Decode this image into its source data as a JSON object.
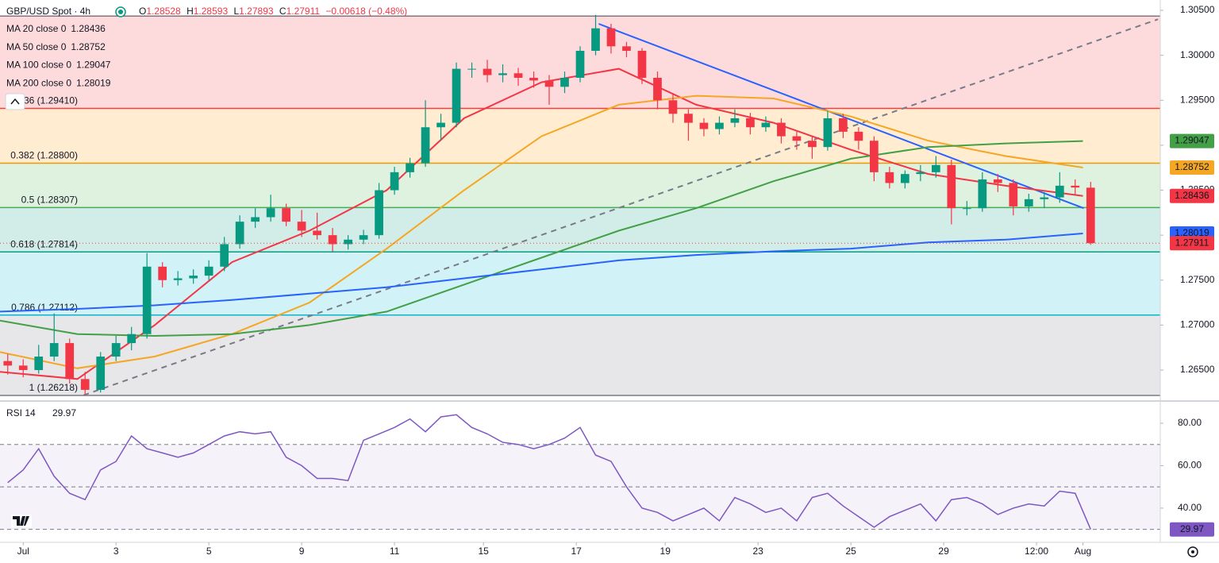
{
  "chart_data": [
    {
      "type": "candlestick",
      "title": "GBP/USD Spot · 4h",
      "ohlc_labels": [
        "O",
        "H",
        "L",
        "C"
      ],
      "change": "−0.00618 (−0.48%)",
      "up_color": "#089981",
      "down_color": "#f23645",
      "x": [
        1,
        3,
        5,
        7,
        9,
        11,
        13,
        15,
        17,
        19,
        21,
        23,
        25,
        27,
        29,
        31,
        33,
        35,
        37,
        39,
        41,
        43,
        45,
        47,
        49,
        51,
        53,
        55,
        57,
        59,
        61,
        63,
        65,
        67,
        69,
        71,
        73,
        75,
        77,
        79,
        81,
        83,
        85,
        87,
        89,
        91,
        93,
        95,
        97,
        99,
        101,
        103,
        105,
        107,
        109,
        111,
        113,
        115,
        117,
        119,
        121,
        123,
        125,
        127,
        129,
        131,
        133,
        135,
        137,
        139,
        141
      ],
      "candles": [
        [
          1.266,
          1.2668,
          1.2645,
          1.2655
        ],
        [
          1.2655,
          1.2662,
          1.2642,
          1.265
        ],
        [
          1.265,
          1.2678,
          1.2646,
          1.2665
        ],
        [
          1.2665,
          1.2713,
          1.266,
          1.268
        ],
        [
          1.268,
          1.2685,
          1.2635,
          1.264
        ],
        [
          1.264,
          1.2648,
          1.2622,
          1.2628
        ],
        [
          1.2628,
          1.267,
          1.2625,
          1.2665
        ],
        [
          1.2665,
          1.2688,
          1.266,
          1.268
        ],
        [
          1.268,
          1.2698,
          1.2672,
          1.269
        ],
        [
          1.269,
          1.278,
          1.2685,
          1.2765
        ],
        [
          1.2765,
          1.277,
          1.2742,
          1.275
        ],
        [
          1.275,
          1.276,
          1.2744,
          1.2752
        ],
        [
          1.2752,
          1.2762,
          1.2746,
          1.2755
        ],
        [
          1.2755,
          1.2772,
          1.275,
          1.2765
        ],
        [
          1.2765,
          1.2798,
          1.276,
          1.279
        ],
        [
          1.279,
          1.2822,
          1.2785,
          1.2815
        ],
        [
          1.2815,
          1.283,
          1.2808,
          1.282
        ],
        [
          1.282,
          1.2845,
          1.2815,
          1.283
        ],
        [
          1.283,
          1.2835,
          1.281,
          1.2815
        ],
        [
          1.2815,
          1.2828,
          1.2798,
          1.2805
        ],
        [
          1.2805,
          1.2825,
          1.2795,
          1.28
        ],
        [
          1.28,
          1.2808,
          1.2782,
          1.279
        ],
        [
          1.279,
          1.28,
          1.2784,
          1.2795
        ],
        [
          1.2795,
          1.2806,
          1.279,
          1.28
        ],
        [
          1.28,
          1.2858,
          1.2796,
          1.285
        ],
        [
          1.285,
          1.2876,
          1.2845,
          1.287
        ],
        [
          1.287,
          1.2886,
          1.2864,
          1.288
        ],
        [
          1.288,
          1.295,
          1.2876,
          1.292
        ],
        [
          1.292,
          1.2935,
          1.2905,
          1.2925
        ],
        [
          1.2925,
          1.2992,
          1.292,
          1.2985
        ],
        [
          1.2985,
          1.2992,
          1.2975,
          1.2985
        ],
        [
          1.2985,
          1.2995,
          1.297,
          1.2978
        ],
        [
          1.2978,
          1.299,
          1.297,
          1.298
        ],
        [
          1.298,
          1.2986,
          1.2966,
          1.2975
        ],
        [
          1.2975,
          1.2982,
          1.2964,
          1.2972
        ],
        [
          1.2972,
          1.2978,
          1.2945,
          1.2965
        ],
        [
          1.2965,
          1.2982,
          1.2958,
          1.2975
        ],
        [
          1.2975,
          1.301,
          1.297,
          1.3005
        ],
        [
          1.3005,
          1.3045,
          1.3,
          1.303
        ],
        [
          1.303,
          1.3035,
          1.3002,
          1.301
        ],
        [
          1.301,
          1.3015,
          1.2998,
          1.3005
        ],
        [
          1.3005,
          1.3008,
          1.2968,
          1.2975
        ],
        [
          1.2975,
          1.2982,
          1.294,
          1.295
        ],
        [
          1.295,
          1.2958,
          1.2925,
          1.2935
        ],
        [
          1.2935,
          1.294,
          1.2905,
          1.2925
        ],
        [
          1.2925,
          1.293,
          1.291,
          1.2918
        ],
        [
          1.2918,
          1.2932,
          1.2912,
          1.2925
        ],
        [
          1.2925,
          1.294,
          1.292,
          1.293
        ],
        [
          1.293,
          1.2936,
          1.2912,
          1.292
        ],
        [
          1.292,
          1.2932,
          1.2915,
          1.2925
        ],
        [
          1.2925,
          1.293,
          1.2902,
          1.291
        ],
        [
          1.291,
          1.2915,
          1.2895,
          1.2905
        ],
        [
          1.2905,
          1.291,
          1.2885,
          1.2898
        ],
        [
          1.2898,
          1.2938,
          1.2894,
          1.293
        ],
        [
          1.293,
          1.2935,
          1.2908,
          1.2915
        ],
        [
          1.2915,
          1.292,
          1.2895,
          1.2905
        ],
        [
          1.2905,
          1.291,
          1.286,
          1.287
        ],
        [
          1.287,
          1.2876,
          1.2852,
          1.2858
        ],
        [
          1.2858,
          1.2872,
          1.2852,
          1.2868
        ],
        [
          1.2868,
          1.2878,
          1.286,
          1.287
        ],
        [
          1.287,
          1.2888,
          1.2864,
          1.2878
        ],
        [
          1.2878,
          1.2884,
          1.2812,
          1.283
        ],
        [
          1.283,
          1.2838,
          1.2822,
          1.283
        ],
        [
          1.283,
          1.287,
          1.2826,
          1.2862
        ],
        [
          1.2862,
          1.2868,
          1.2848,
          1.2858
        ],
        [
          1.2858,
          1.2862,
          1.2822,
          1.2832
        ],
        [
          1.2832,
          1.2846,
          1.2826,
          1.284
        ],
        [
          1.284,
          1.2848,
          1.283,
          1.2842
        ],
        [
          1.2842,
          1.287,
          1.2836,
          1.2855
        ],
        [
          1.2855,
          1.2862,
          1.2845,
          1.2853
        ],
        [
          1.28528,
          1.28593,
          1.27893,
          1.27911
        ]
      ],
      "series": [
        {
          "name": "MA 20 close 0",
          "color": "#f23645",
          "x": [
            0,
            10,
            20,
            30,
            40,
            50,
            60,
            70,
            80,
            90,
            100,
            110,
            120,
            130,
            140
          ],
          "values": [
            1.2648,
            1.264,
            1.27,
            1.277,
            1.2805,
            1.285,
            1.293,
            1.297,
            1.2985,
            1.2945,
            1.2925,
            1.2895,
            1.2868,
            1.2855,
            1.28436
          ]
        },
        {
          "name": "MA 50 close 0",
          "color": "#f5a623",
          "x": [
            0,
            10,
            20,
            30,
            40,
            50,
            60,
            70,
            80,
            90,
            100,
            110,
            120,
            130,
            140
          ],
          "values": [
            1.267,
            1.2652,
            1.2665,
            1.269,
            1.2725,
            1.2785,
            1.285,
            1.291,
            1.2945,
            1.2955,
            1.2952,
            1.2932,
            1.2905,
            1.2888,
            1.28752
          ]
        },
        {
          "name": "MA 100 close 0",
          "color": "#43a047",
          "x": [
            0,
            10,
            20,
            30,
            40,
            50,
            60,
            70,
            80,
            90,
            100,
            110,
            120,
            130,
            140
          ],
          "values": [
            1.2705,
            1.269,
            1.2688,
            1.269,
            1.27,
            1.2715,
            1.2745,
            1.2775,
            1.2805,
            1.283,
            1.286,
            1.2885,
            1.2898,
            1.2902,
            1.29047
          ]
        },
        {
          "name": "MA 200 close 0",
          "color": "#2962ff",
          "x": [
            0,
            10,
            20,
            30,
            40,
            50,
            60,
            70,
            80,
            90,
            100,
            110,
            120,
            130,
            140
          ],
          "values": [
            1.2715,
            1.2718,
            1.2722,
            1.2728,
            1.2735,
            1.2742,
            1.2752,
            1.2762,
            1.2772,
            1.2778,
            1.2782,
            1.2785,
            1.2792,
            1.2795,
            1.28019
          ]
        }
      ],
      "fib": [
        {
          "label": null,
          "value": 1.30436,
          "color": "#787b86"
        },
        {
          "label": "36 (1.29410)",
          "value": 1.2941,
          "color": "#f23645"
        },
        {
          "label": "0.382 (1.28800)",
          "value": 1.288,
          "color": "#ff9800"
        },
        {
          "label": "0.5 (1.28307)",
          "value": 1.28307,
          "color": "#4caf50"
        },
        {
          "label": "0.618 (1.27814)",
          "value": 1.27814,
          "color": "#089981"
        },
        {
          "label": "0.786 (1.27112)",
          "value": 1.27112,
          "color": "#00bcd4"
        },
        {
          "label": "1 (1.26218)",
          "value": 1.26218,
          "color": "#787b86"
        }
      ],
      "trendlines": [
        {
          "x": [
            10.8,
            149.7
          ],
          "values": [
            1.2622,
            1.304
          ],
          "color": "#787b86",
          "dashed": true
        },
        {
          "x": [
            77.4,
            140.1
          ],
          "values": [
            1.3035,
            1.283
          ],
          "color": "#2962ff",
          "dashed": false
        }
      ],
      "xlim": [
        0,
        150
      ],
      "ylim": [
        1.262,
        1.30615
      ],
      "yticks": [
        {
          "value": 1.265,
          "label": "1.26500"
        },
        {
          "value": 1.27,
          "label": "1.27000"
        },
        {
          "value": 1.275,
          "label": "1.27500"
        },
        {
          "value": 1.28,
          "label": "1.28000"
        },
        {
          "value": 1.285,
          "label": "1.28500"
        },
        {
          "value": 1.29,
          "label": "1.29000"
        },
        {
          "value": 1.295,
          "label": "1.29500"
        },
        {
          "value": 1.3,
          "label": "1.30000"
        },
        {
          "value": 1.305,
          "label": "1.30500"
        }
      ],
      "xticks": [
        {
          "value": 3,
          "label": "Jul"
        },
        {
          "value": 15,
          "label": "3"
        },
        {
          "value": 27,
          "label": "5"
        },
        {
          "value": 39,
          "label": "9"
        },
        {
          "value": 51,
          "label": "11"
        },
        {
          "value": 62.5,
          "label": "15"
        },
        {
          "value": 74.5,
          "label": "17"
        },
        {
          "value": 86,
          "label": "19"
        },
        {
          "value": 98,
          "label": "23"
        },
        {
          "value": 110,
          "label": "25"
        },
        {
          "value": 122,
          "label": "29"
        },
        {
          "value": 134,
          "label": "12:00"
        },
        {
          "value": 140,
          "label": "Aug"
        }
      ]
    },
    {
      "type": "line",
      "title": "RSI 14",
      "color": "#7e57c2",
      "values": [
        52,
        58,
        68,
        55,
        47,
        44,
        58,
        62,
        74,
        68,
        66,
        64,
        66,
        70,
        74,
        76,
        75,
        76,
        64,
        60,
        54,
        54,
        53,
        72,
        75,
        78,
        82,
        76,
        83,
        84,
        78,
        75,
        71,
        70,
        68,
        70,
        73,
        78,
        65,
        62,
        50,
        40,
        38,
        34,
        37,
        40,
        34,
        45,
        42,
        38,
        40,
        34,
        45,
        47,
        41,
        36,
        31,
        36,
        39,
        42,
        34,
        44,
        45,
        42,
        37,
        40,
        42,
        41,
        48,
        47,
        29.97
      ],
      "levels": [
        70,
        50,
        30
      ],
      "ylim": [
        25,
        88.6
      ],
      "yticks": [
        {
          "value": 40,
          "label": "40.00"
        },
        {
          "value": 60,
          "label": "60.00"
        },
        {
          "value": 80,
          "label": "80.00"
        }
      ]
    }
  ]
}
